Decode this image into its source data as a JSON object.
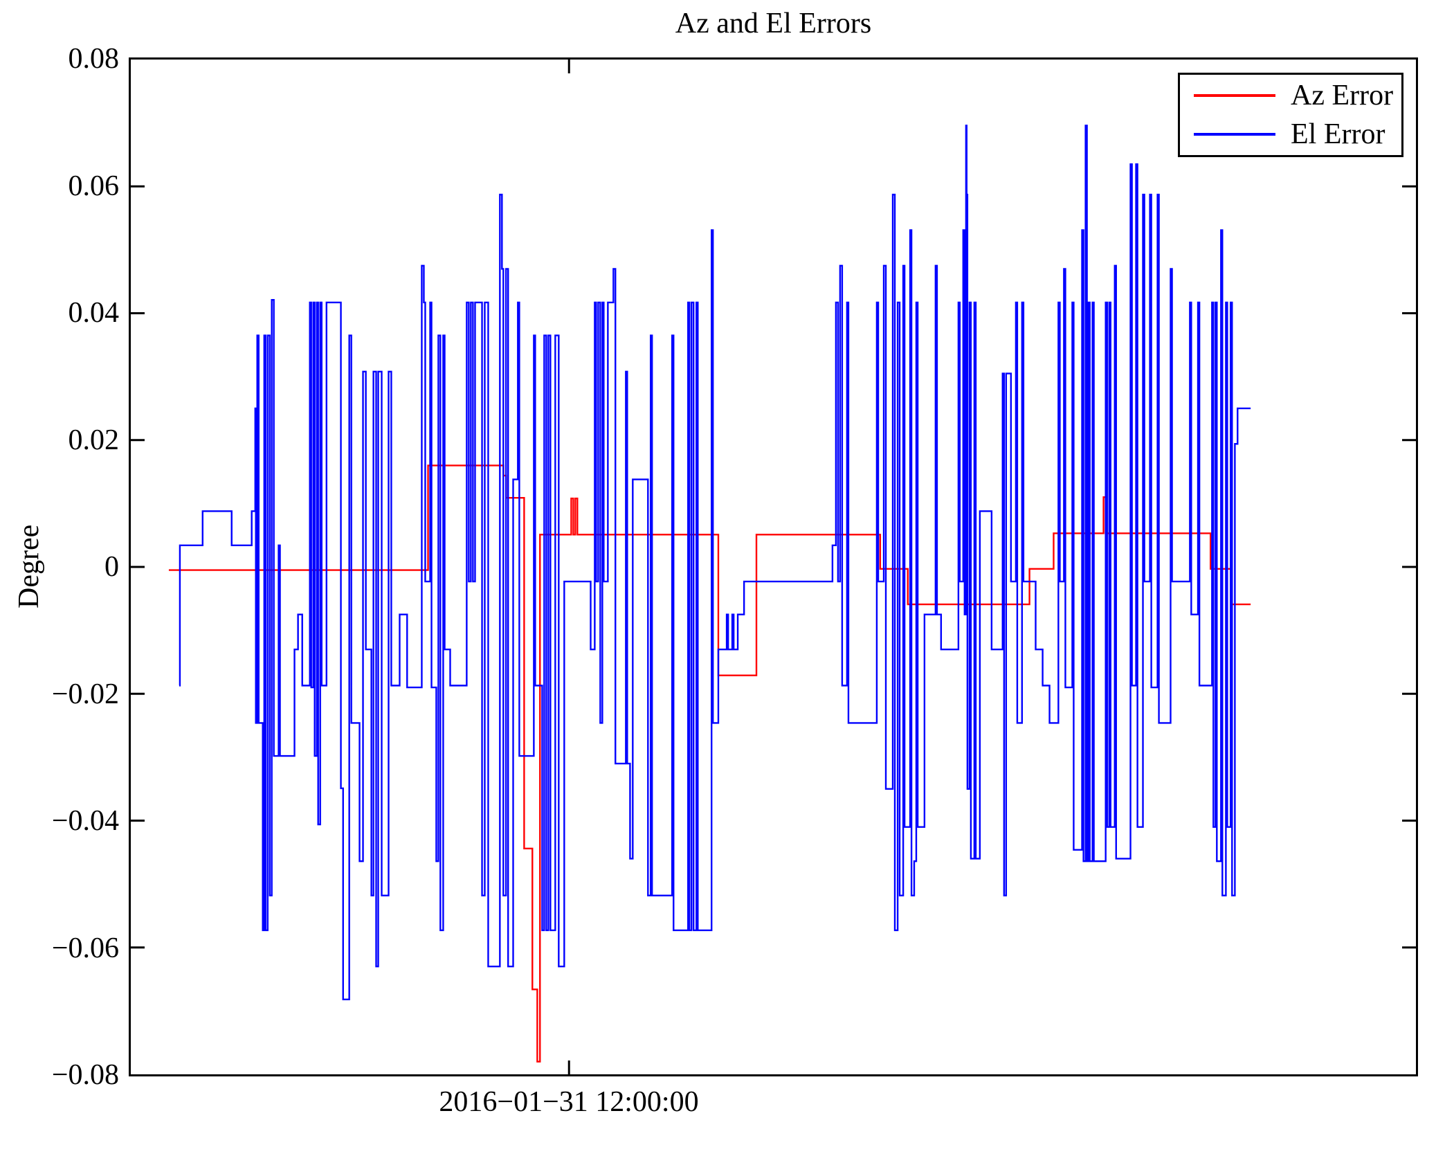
{
  "title": "Az and El Errors",
  "ylabel": "Degree",
  "xtick_label": "2016−01−31 12:00:00",
  "yticks": [
    "0.08",
    "0.06",
    "0.04",
    "0.02",
    "0",
    "−0.02",
    "−0.04",
    "−0.06",
    "−0.08"
  ],
  "legend": [
    {
      "label": "Az Error",
      "color": "#ff0000"
    },
    {
      "label": "El Error",
      "color": "#0000ff"
    }
  ],
  "colors": {
    "az": "#ff0000",
    "el": "#0000ff",
    "axis": "#000000",
    "background": "#ffffff"
  },
  "chart_data": {
    "type": "line",
    "title": "Az and El Errors",
    "xlabel": "",
    "ylabel": "Degree",
    "ylim": [
      -0.08,
      0.08
    ],
    "ytick_step": 0.02,
    "grid": false,
    "legend_position": "top-right",
    "x_axis": {
      "tick_label": "2016−01−31 12:00:00",
      "tick_fraction": 0.341,
      "x_unit": "fraction of plot width (time axis, unlabeled)"
    },
    "series": [
      {
        "name": "Az Error",
        "color": "#ff0000",
        "mode": "step",
        "points": [
          [
            0.0296,
            -0.0005
          ],
          [
            0.2313,
            0.016
          ],
          [
            0.29,
            0.0144
          ],
          [
            0.2921,
            0.0109
          ],
          [
            0.3061,
            -0.0444
          ],
          [
            0.3125,
            -0.0666
          ],
          [
            0.3163,
            -0.078
          ],
          [
            0.3184,
            0.0051
          ],
          [
            0.3427,
            0.0108
          ],
          [
            0.3443,
            0.0051
          ],
          [
            0.3459,
            0.0108
          ],
          [
            0.3475,
            0.0051
          ],
          [
            0.4572,
            -0.0171
          ],
          [
            0.4868,
            0.0051
          ],
          [
            0.5831,
            -0.0003
          ],
          [
            0.6046,
            -0.0059
          ],
          [
            0.6993,
            -0.0003
          ],
          [
            0.7181,
            0.0053
          ],
          [
            0.7569,
            0.011
          ],
          [
            0.7585,
            0.0053
          ],
          [
            0.8402,
            -0.0003
          ],
          [
            0.8564,
            -0.0059
          ],
          [
            0.8714,
            -0.0059
          ]
        ]
      },
      {
        "name": "El Error",
        "color": "#0000ff",
        "mode": "step",
        "points": [
          [
            0.0377,
            -0.0187
          ],
          [
            0.0382,
            0.0034
          ],
          [
            0.0559,
            0.0088
          ],
          [
            0.0785,
            0.0034
          ],
          [
            0.0887,
            0.0034
          ],
          [
            0.0941,
            0.0088
          ],
          [
            0.0968,
            0.025
          ],
          [
            0.0973,
            -0.0246
          ],
          [
            0.0984,
            0.0365
          ],
          [
            0.0995,
            -0.0246
          ],
          [
            0.1027,
            -0.0573
          ],
          [
            0.1038,
            0.0365
          ],
          [
            0.1049,
            -0.0573
          ],
          [
            0.1065,
            0.0365
          ],
          [
            0.1081,
            -0.0518
          ],
          [
            0.1097,
            0.0421
          ],
          [
            0.1113,
            -0.0298
          ],
          [
            0.115,
            0.0034
          ],
          [
            0.1161,
            -0.0298
          ],
          [
            0.1204,
            -0.0298
          ],
          [
            0.1274,
            -0.013
          ],
          [
            0.1301,
            -0.0075
          ],
          [
            0.1334,
            -0.0187
          ],
          [
            0.1393,
            0.0417
          ],
          [
            0.1404,
            -0.019
          ],
          [
            0.142,
            0.0417
          ],
          [
            0.1431,
            -0.0298
          ],
          [
            0.1447,
            0.0417
          ],
          [
            0.1458,
            -0.0406
          ],
          [
            0.1474,
            0.0417
          ],
          [
            0.1485,
            -0.0187
          ],
          [
            0.1523,
            0.0417
          ],
          [
            0.1587,
            0.0417
          ],
          [
            0.1635,
            -0.0349
          ],
          [
            0.1652,
            -0.0682
          ],
          [
            0.17,
            0.0365
          ],
          [
            0.1716,
            -0.0246
          ],
          [
            0.178,
            -0.0464
          ],
          [
            0.1807,
            0.0308
          ],
          [
            0.1829,
            -0.013
          ],
          [
            0.1872,
            -0.0518
          ],
          [
            0.1888,
            0.0308
          ],
          [
            0.1909,
            -0.063
          ],
          [
            0.1925,
            0.0308
          ],
          [
            0.1952,
            -0.0518
          ],
          [
            0.2006,
            0.0308
          ],
          [
            0.2027,
            -0.0187
          ],
          [
            0.2092,
            -0.0075
          ],
          [
            0.215,
            -0.019
          ],
          [
            0.2264,
            0.0475
          ],
          [
            0.228,
            0.0417
          ],
          [
            0.2291,
            -0.0023
          ],
          [
            0.2329,
            0.0417
          ],
          [
            0.234,
            -0.019
          ],
          [
            0.2377,
            -0.0464
          ],
          [
            0.2393,
            0.0365
          ],
          [
            0.2409,
            -0.0573
          ],
          [
            0.2431,
            0.0365
          ],
          [
            0.2442,
            -0.013
          ],
          [
            0.2485,
            -0.0187
          ],
          [
            0.2614,
            0.0417
          ],
          [
            0.263,
            -0.0023
          ],
          [
            0.2646,
            0.0417
          ],
          [
            0.2662,
            -0.0023
          ],
          [
            0.2679,
            0.0417
          ],
          [
            0.27,
            0.0417
          ],
          [
            0.2733,
            -0.0518
          ],
          [
            0.2754,
            0.0417
          ],
          [
            0.2781,
            -0.063
          ],
          [
            0.2872,
            0.0587
          ],
          [
            0.2888,
            0.047
          ],
          [
            0.2899,
            -0.0518
          ],
          [
            0.292,
            0.047
          ],
          [
            0.2936,
            -0.063
          ],
          [
            0.2975,
            0.0138
          ],
          [
            0.3012,
            0.0417
          ],
          [
            0.3023,
            -0.0298
          ],
          [
            0.3136,
            0.0365
          ],
          [
            0.3147,
            -0.0187
          ],
          [
            0.3201,
            -0.0573
          ],
          [
            0.3217,
            0.0365
          ],
          [
            0.3233,
            -0.0573
          ],
          [
            0.3249,
            0.0365
          ],
          [
            0.3265,
            -0.0573
          ],
          [
            0.3287,
            -0.0573
          ],
          [
            0.3303,
            0.0365
          ],
          [
            0.333,
            -0.063
          ],
          [
            0.3373,
            -0.0023
          ],
          [
            0.3578,
            -0.013
          ],
          [
            0.361,
            0.0417
          ],
          [
            0.3621,
            -0.0023
          ],
          [
            0.3637,
            0.0417
          ],
          [
            0.3653,
            -0.0246
          ],
          [
            0.3669,
            0.0417
          ],
          [
            0.368,
            -0.0023
          ],
          [
            0.3712,
            0.0417
          ],
          [
            0.3755,
            0.047
          ],
          [
            0.3771,
            -0.031
          ],
          [
            0.3852,
            0.0308
          ],
          [
            0.3863,
            -0.031
          ],
          [
            0.3885,
            -0.046
          ],
          [
            0.3906,
            0.0138
          ],
          [
            0.4013,
            0.0138
          ],
          [
            0.4024,
            -0.0518
          ],
          [
            0.4045,
            0.0365
          ],
          [
            0.4056,
            -0.0518
          ],
          [
            0.4212,
            0.0365
          ],
          [
            0.4223,
            -0.0573
          ],
          [
            0.4336,
            0.0417
          ],
          [
            0.4347,
            -0.0573
          ],
          [
            0.4363,
            0.0417
          ],
          [
            0.4379,
            -0.0573
          ],
          [
            0.4401,
            0.0417
          ],
          [
            0.4412,
            -0.0573
          ],
          [
            0.4519,
            0.0531
          ],
          [
            0.453,
            -0.0246
          ],
          [
            0.4572,
            -0.013
          ],
          [
            0.4637,
            -0.0075
          ],
          [
            0.4648,
            -0.013
          ],
          [
            0.468,
            -0.0075
          ],
          [
            0.4691,
            -0.013
          ],
          [
            0.4723,
            -0.0075
          ],
          [
            0.4772,
            -0.0023
          ],
          [
            0.5444,
            -0.0023
          ],
          [
            0.546,
            0.0034
          ],
          [
            0.5487,
            0.0417
          ],
          [
            0.5503,
            -0.0023
          ],
          [
            0.5519,
            0.0475
          ],
          [
            0.5535,
            -0.0187
          ],
          [
            0.5573,
            0.0417
          ],
          [
            0.5584,
            -0.0246
          ],
          [
            0.5805,
            0.0417
          ],
          [
            0.5816,
            -0.0023
          ],
          [
            0.5859,
            0.0475
          ],
          [
            0.5875,
            -0.035
          ],
          [
            0.5929,
            0.0587
          ],
          [
            0.5945,
            -0.0573
          ],
          [
            0.5967,
            0.0417
          ],
          [
            0.5983,
            -0.0518
          ],
          [
            0.601,
            0.0475
          ],
          [
            0.6021,
            -0.041
          ],
          [
            0.6064,
            0.0531
          ],
          [
            0.6075,
            -0.0518
          ],
          [
            0.6096,
            -0.0464
          ],
          [
            0.6112,
            0.0417
          ],
          [
            0.6123,
            -0.041
          ],
          [
            0.6176,
            -0.0075
          ],
          [
            0.6247,
            -0.0075
          ],
          [
            0.6262,
            0.0475
          ],
          [
            0.6273,
            -0.0075
          ],
          [
            0.6305,
            -0.013
          ],
          [
            0.6385,
            -0.013
          ],
          [
            0.644,
            0.0417
          ],
          [
            0.6451,
            -0.0023
          ],
          [
            0.6477,
            0.0531
          ],
          [
            0.6488,
            -0.0075
          ],
          [
            0.6499,
            0.0696
          ],
          [
            0.6504,
            0.0587
          ],
          [
            0.651,
            -0.035
          ],
          [
            0.6526,
            0.0417
          ],
          [
            0.6537,
            -0.046
          ],
          [
            0.6564,
            0.0417
          ],
          [
            0.6575,
            -0.046
          ],
          [
            0.6607,
            0.0088
          ],
          [
            0.6698,
            -0.013
          ],
          [
            0.6784,
            0.0305
          ],
          [
            0.6795,
            -0.0518
          ],
          [
            0.6811,
            0.0305
          ],
          [
            0.6849,
            -0.0023
          ],
          [
            0.6887,
            0.0417
          ],
          [
            0.6898,
            -0.0246
          ],
          [
            0.6935,
            0.0417
          ],
          [
            0.6946,
            -0.0023
          ],
          [
            0.7041,
            -0.013
          ],
          [
            0.7095,
            -0.0187
          ],
          [
            0.7149,
            -0.0246
          ],
          [
            0.7207,
            -0.0246
          ],
          [
            0.7218,
            0.0417
          ],
          [
            0.7229,
            -0.0023
          ],
          [
            0.7261,
            0.047
          ],
          [
            0.7272,
            -0.019
          ],
          [
            0.7326,
            0.0417
          ],
          [
            0.7337,
            -0.0446
          ],
          [
            0.7402,
            0.0531
          ],
          [
            0.7413,
            -0.0464
          ],
          [
            0.7429,
            0.0696
          ],
          [
            0.744,
            -0.0464
          ],
          [
            0.7451,
            0.0417
          ],
          [
            0.7462,
            -0.0464
          ],
          [
            0.7483,
            0.0417
          ],
          [
            0.7494,
            -0.0464
          ],
          [
            0.7586,
            0.0417
          ],
          [
            0.7597,
            -0.041
          ],
          [
            0.7613,
            0.0417
          ],
          [
            0.7624,
            -0.041
          ],
          [
            0.7656,
            0.0475
          ],
          [
            0.7667,
            -0.046
          ],
          [
            0.7779,
            0.0635
          ],
          [
            0.779,
            -0.0187
          ],
          [
            0.7822,
            0.0635
          ],
          [
            0.7833,
            -0.041
          ],
          [
            0.7876,
            0.0587
          ],
          [
            0.7887,
            -0.0023
          ],
          [
            0.793,
            0.0587
          ],
          [
            0.7941,
            -0.019
          ],
          [
            0.7989,
            0.0587
          ],
          [
            0.8,
            -0.0246
          ],
          [
            0.8091,
            0.047
          ],
          [
            0.8102,
            -0.0023
          ],
          [
            0.8156,
            -0.0023
          ],
          [
            0.8241,
            0.0417
          ],
          [
            0.8252,
            -0.0075
          ],
          [
            0.8304,
            0.0417
          ],
          [
            0.8315,
            -0.0187
          ],
          [
            0.8413,
            0.0417
          ],
          [
            0.8424,
            -0.041
          ],
          [
            0.844,
            0.0417
          ],
          [
            0.8451,
            -0.0464
          ],
          [
            0.8483,
            0.0531
          ],
          [
            0.8494,
            -0.0518
          ],
          [
            0.8521,
            0.0417
          ],
          [
            0.8532,
            -0.041
          ],
          [
            0.8558,
            0.0417
          ],
          [
            0.8569,
            -0.0518
          ],
          [
            0.8591,
            0.0194
          ],
          [
            0.8612,
            0.025
          ],
          [
            0.8714,
            0.025
          ]
        ]
      }
    ]
  }
}
